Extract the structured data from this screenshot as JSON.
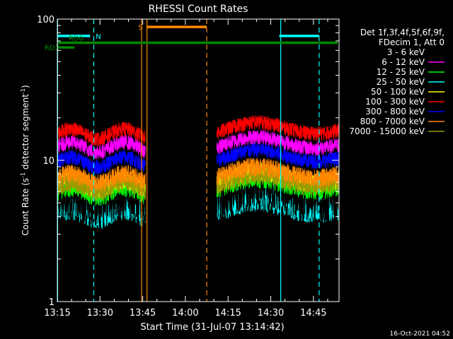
{
  "chart_data": {
    "type": "line",
    "title": "RHESSI Count Rates",
    "xlabel": "Start Time (31-Jul-07 13:14:42)",
    "ylabel_main": "Count Rate (s",
    "ylabel_sup1": "-1",
    "ylabel_mid": " detector segment",
    "ylabel_sup2": "-1",
    "ylabel_end": ")",
    "timestamp": "16-Oct-2021 04:52",
    "y_scale": "log",
    "ylim": [
      1,
      100
    ],
    "xlim_minutes": [
      0,
      99
    ],
    "x_ticks": [
      {
        "label": "13:15",
        "minutes": 0
      },
      {
        "label": "13:30",
        "minutes": 15
      },
      {
        "label": "13:45",
        "minutes": 30
      },
      {
        "label": "14:00",
        "minutes": 45
      },
      {
        "label": "14:15",
        "minutes": 60
      },
      {
        "label": "14:30",
        "minutes": 75
      },
      {
        "label": "14:45",
        "minutes": 90
      }
    ],
    "y_ticks": [
      {
        "label": "1",
        "value": 1
      },
      {
        "label": "10",
        "value": 10
      },
      {
        "label": "100",
        "value": 100
      }
    ],
    "legend_header": [
      "Det 1f,3f,4f,5f,6f,9f,",
      "FDecim 1, Att 0"
    ],
    "legend_placement": "right",
    "gap_minutes": [
      31,
      56
    ],
    "series": [
      {
        "name": "3 - 6 keV",
        "color": "#000000",
        "pre": 5.2,
        "post": 5.6,
        "noise": 0.1
      },
      {
        "name": "6 - 12 keV",
        "color": "#ff00ff",
        "pre": 12.5,
        "post": 13.0,
        "noise": 0.04
      },
      {
        "name": "12 - 25 keV",
        "color": "#00ff00",
        "pre": 6.2,
        "post": 6.8,
        "noise": 0.06
      },
      {
        "name": "25 - 50 keV",
        "color": "#00ffff",
        "pre": 4.6,
        "post": 5.0,
        "noise": 0.08
      },
      {
        "name": "50 - 100 keV",
        "color": "#ffff00",
        "pre": 6.8,
        "post": 7.4,
        "noise": 0.05
      },
      {
        "name": "100 - 300 keV",
        "color": "#ff0000",
        "pre": 15.5,
        "post": 16.5,
        "noise": 0.04
      },
      {
        "name": "300 - 800 keV",
        "color": "#0000ff",
        "pre": 9.8,
        "post": 10.5,
        "noise": 0.04
      },
      {
        "name": "800 - 7000 keV",
        "color": "#ff8800",
        "pre": 7.5,
        "post": 8.0,
        "noise": 0.05
      },
      {
        "name": "7000 - 15000 keV",
        "color": "#999900",
        "pre": 6.5,
        "post": 7.0,
        "noise": 0.05
      }
    ],
    "annotations": [
      {
        "label": "N",
        "color": "#00ffff",
        "kind": "bar",
        "start": 0,
        "end": 11.5,
        "y": 76
      },
      {
        "label": "",
        "color": "#00ffff",
        "kind": "bar",
        "start": 78,
        "end": 92,
        "y": 76
      },
      {
        "label": "S",
        "color": "#ff8800",
        "kind": "bar",
        "start": 31.5,
        "end": 52.5,
        "y": 88
      },
      {
        "label": "RD0",
        "color": "#008800",
        "kind": "bar",
        "start": 0,
        "end": 98.5,
        "y": 68
      },
      {
        "label": "RD1",
        "color": "#008800",
        "kind": "bar",
        "start": 0,
        "end": 6,
        "y": 63
      }
    ],
    "vertical_lines": [
      {
        "minutes": 0.1,
        "color": "#00ffff",
        "style": "solid"
      },
      {
        "minutes": 12.8,
        "color": "#00ffff",
        "style": "dashed"
      },
      {
        "minutes": 29.6,
        "color": "#ff8800",
        "style": "solid"
      },
      {
        "minutes": 31.5,
        "color": "#ff8800",
        "style": "solid"
      },
      {
        "minutes": 52.5,
        "color": "#ff8800",
        "style": "dashed"
      },
      {
        "minutes": 78.5,
        "color": "#00ffff",
        "style": "solid"
      },
      {
        "minutes": 92.0,
        "color": "#00ffff",
        "style": "dashed"
      }
    ]
  }
}
